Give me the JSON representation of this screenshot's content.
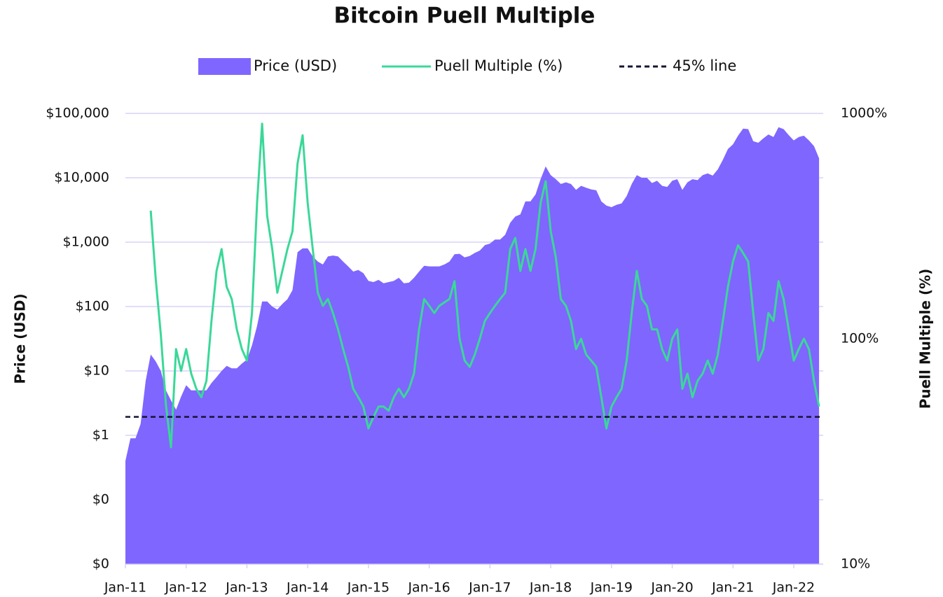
{
  "chart_data": {
    "type": "area-line",
    "title": "Bitcoin Puell Multiple",
    "y_label": "Price (USD)",
    "y2_label": "Puell Multiple (%)",
    "categories": [
      "Jan-11",
      null,
      null,
      null,
      null,
      null,
      null,
      null,
      null,
      null,
      null,
      null,
      "Jan-12",
      null,
      null,
      null,
      null,
      null,
      null,
      null,
      null,
      null,
      null,
      null,
      "Jan-13",
      null,
      null,
      null,
      null,
      null,
      null,
      null,
      null,
      null,
      null,
      null,
      "Jan-14",
      null,
      null,
      null,
      null,
      null,
      null,
      null,
      null,
      null,
      null,
      null,
      "Jan-15",
      null,
      null,
      null,
      null,
      null,
      null,
      null,
      null,
      null,
      null,
      null,
      "Jan-16",
      null,
      null,
      null,
      null,
      null,
      null,
      null,
      null,
      null,
      null,
      null,
      "Jan-17",
      null,
      null,
      null,
      null,
      null,
      null,
      null,
      null,
      null,
      null,
      null,
      "Jan-18",
      null,
      null,
      null,
      null,
      null,
      null,
      null,
      null,
      null,
      null,
      null,
      "Jan-19",
      null,
      null,
      null,
      null,
      null,
      null,
      null,
      null,
      null,
      null,
      null,
      "Jan-20",
      null,
      null,
      null,
      null,
      null,
      null,
      null,
      null,
      null,
      null,
      null,
      "Jan-21",
      null,
      null,
      null,
      null,
      null,
      null,
      null,
      null,
      null,
      null,
      null,
      "Jan-22",
      null,
      null,
      null,
      null,
      null
    ],
    "series": [
      {
        "name": "Price (USD)",
        "kind": "area",
        "axis": "y",
        "color": "#7f66ff",
        "values": [
          0.4,
          0.9,
          0.9,
          1.5,
          7,
          18,
          14,
          10,
          5,
          3.5,
          2.5,
          4,
          6,
          5,
          5,
          5,
          5,
          6.5,
          8,
          10,
          12,
          11,
          11,
          13,
          15,
          25,
          50,
          120,
          120,
          100,
          90,
          110,
          130,
          180,
          700,
          800,
          800,
          600,
          500,
          450,
          600,
          620,
          600,
          500,
          420,
          350,
          370,
          330,
          250,
          240,
          260,
          230,
          240,
          250,
          280,
          230,
          235,
          280,
          350,
          430,
          420,
          420,
          420,
          450,
          500,
          650,
          660,
          580,
          610,
          680,
          740,
          900,
          950,
          1100,
          1100,
          1300,
          2000,
          2500,
          2700,
          4300,
          4300,
          5500,
          9500,
          15000,
          11000,
          9500,
          8000,
          8500,
          8000,
          6500,
          7500,
          7000,
          6600,
          6400,
          4300,
          3700,
          3500,
          3800,
          4000,
          5200,
          8000,
          11000,
          10000,
          10000,
          8300,
          9000,
          7500,
          7200,
          9000,
          9500,
          6500,
          8500,
          9500,
          9200,
          11000,
          11700,
          10800,
          13500,
          19000,
          28000,
          33000,
          45000,
          58000,
          57000,
          37000,
          35000,
          41000,
          47000,
          43000,
          61000,
          57000,
          46000,
          38000,
          43000,
          45000,
          38000,
          31000,
          20000
        ]
      },
      {
        "name": "Puell Multiple (%)",
        "kind": "line",
        "axis": "y2",
        "color": "#3ad898",
        "values": [
          null,
          null,
          null,
          null,
          null,
          370,
          183,
          104,
          51,
          33,
          90,
          72,
          90,
          70,
          60,
          55,
          65,
          120,
          200,
          250,
          170,
          150,
          110,
          90,
          80,
          130,
          400,
          900,
          350,
          250,
          160,
          200,
          250,
          300,
          600,
          800,
          400,
          250,
          160,
          140,
          150,
          130,
          110,
          90,
          75,
          60,
          55,
          50,
          40,
          45,
          50,
          50,
          48,
          55,
          60,
          55,
          60,
          70,
          110,
          150,
          140,
          130,
          140,
          145,
          150,
          180,
          100,
          80,
          75,
          85,
          100,
          120,
          130,
          140,
          150,
          160,
          250,
          280,
          200,
          250,
          200,
          250,
          400,
          500,
          300,
          230,
          150,
          140,
          120,
          90,
          100,
          85,
          80,
          75,
          55,
          40,
          50,
          55,
          60,
          80,
          130,
          200,
          150,
          140,
          110,
          110,
          90,
          80,
          100,
          110,
          60,
          70,
          55,
          65,
          70,
          80,
          70,
          85,
          120,
          170,
          220,
          260,
          240,
          220,
          130,
          80,
          90,
          130,
          120,
          180,
          150,
          110,
          80,
          90,
          100,
          90,
          65,
          50
        ]
      }
    ],
    "hlines": [
      {
        "name": "45% line",
        "value": 45,
        "axis": "y2",
        "color": "#141433"
      }
    ],
    "ylog": true,
    "ylim": [
      0.01,
      100000
    ],
    "yticks": [
      {
        "value": 0.01,
        "label": "$0"
      },
      {
        "value": 0.1,
        "label": "$0"
      },
      {
        "value": 1,
        "label": "$1"
      },
      {
        "value": 10,
        "label": "$10"
      },
      {
        "value": 100,
        "label": "$100"
      },
      {
        "value": 1000,
        "label": "$1,000"
      },
      {
        "value": 10000,
        "label": "$10,000"
      },
      {
        "value": 100000,
        "label": "$100,000"
      }
    ],
    "y2log": true,
    "y2lim": [
      10,
      1000
    ],
    "y2ticks": [
      {
        "value": 10,
        "label": "10%"
      },
      {
        "value": 100,
        "label": "100%"
      },
      {
        "value": 1000,
        "label": "1000%"
      }
    ],
    "grid": true,
    "legend": "top"
  }
}
